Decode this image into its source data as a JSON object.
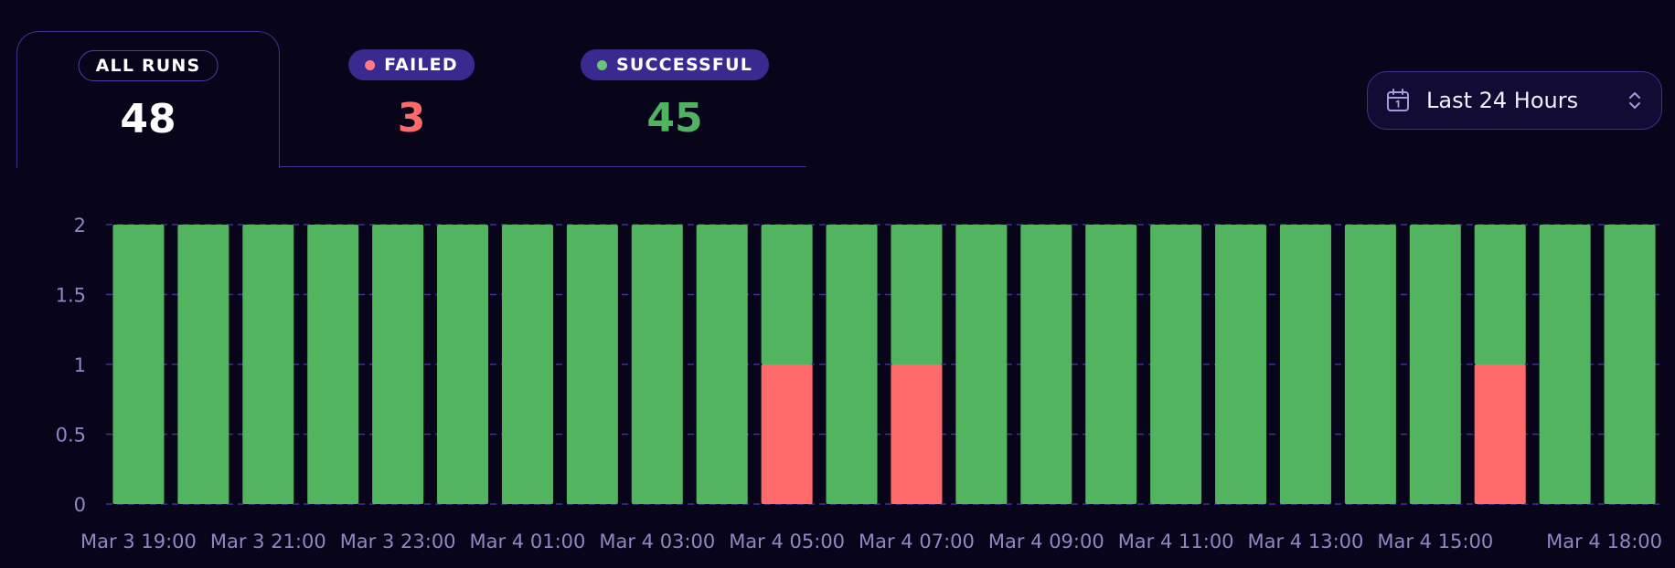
{
  "tabs": [
    {
      "label": "ALL RUNS",
      "value": "48",
      "value_color": "#ffffff",
      "dot_color": null,
      "active": true
    },
    {
      "label": "FAILED",
      "value": "3",
      "value_color": "#ff6b6b",
      "dot_color": "#ff7b86",
      "active": false
    },
    {
      "label": "SUCCESSFUL",
      "value": "45",
      "value_color": "#4fb35f",
      "dot_color": "#6cc27a",
      "active": false
    }
  ],
  "range_select": {
    "label": "Last 24 Hours",
    "icon": "calendar-icon",
    "chevron_icon": "chevron-up-down-icon"
  },
  "colors": {
    "background": "#08051a",
    "successful": "#53b45f",
    "failed": "#ff6b6b",
    "grid": "#3c3390",
    "axis_text": "#8e88c4"
  },
  "chart_data": {
    "type": "bar",
    "stacked": true,
    "categories": [
      "Mar 3 19:00",
      "Mar 3 20:00",
      "Mar 3 21:00",
      "Mar 3 22:00",
      "Mar 3 23:00",
      "Mar 4 00:00",
      "Mar 4 01:00",
      "Mar 4 02:00",
      "Mar 4 03:00",
      "Mar 4 04:00",
      "Mar 4 05:00",
      "Mar 4 06:00",
      "Mar 4 07:00",
      "Mar 4 08:00",
      "Mar 4 09:00",
      "Mar 4 10:00",
      "Mar 4 11:00",
      "Mar 4 12:00",
      "Mar 4 13:00",
      "Mar 4 14:00",
      "Mar 4 15:00",
      "Mar 4 16:00",
      "Mar 4 17:00",
      "Mar 4 18:00"
    ],
    "series": [
      {
        "name": "failed",
        "color": "#ff6b6b",
        "values": [
          0,
          0,
          0,
          0,
          0,
          0,
          0,
          0,
          0,
          0,
          1,
          0,
          1,
          0,
          0,
          0,
          0,
          0,
          0,
          0,
          0,
          1,
          0,
          0
        ]
      },
      {
        "name": "successful",
        "color": "#53b45f",
        "values": [
          2,
          2,
          2,
          2,
          2,
          2,
          2,
          2,
          2,
          2,
          1,
          2,
          1,
          2,
          2,
          2,
          2,
          2,
          2,
          2,
          2,
          1,
          2,
          2
        ]
      }
    ],
    "x_tick_labels": [
      {
        "index": 0,
        "label": "Mar 3 19:00"
      },
      {
        "index": 2,
        "label": "Mar 3 21:00"
      },
      {
        "index": 4,
        "label": "Mar 3 23:00"
      },
      {
        "index": 6,
        "label": "Mar 4 01:00"
      },
      {
        "index": 8,
        "label": "Mar 4 03:00"
      },
      {
        "index": 10,
        "label": "Mar 4 05:00"
      },
      {
        "index": 12,
        "label": "Mar 4 07:00"
      },
      {
        "index": 14,
        "label": "Mar 4 09:00"
      },
      {
        "index": 16,
        "label": "Mar 4 11:00"
      },
      {
        "index": 18,
        "label": "Mar 4 13:00"
      },
      {
        "index": 20,
        "label": "Mar 4 15:00"
      },
      {
        "index": 23,
        "label": "Mar 4 18:00"
      }
    ],
    "y_ticks": [
      0,
      0.5,
      1,
      1.5,
      2
    ],
    "y_tick_labels": [
      "0",
      "0.5",
      "1",
      "1.5",
      "2"
    ],
    "ylim": [
      0,
      2
    ],
    "grid": true,
    "legend": "none"
  }
}
